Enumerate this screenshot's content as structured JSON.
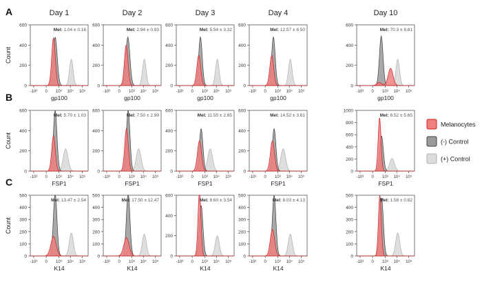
{
  "figure": {
    "days": [
      "Day 1",
      "Day 2",
      "Day 3",
      "Day 4",
      "Day 10"
    ],
    "colors": {
      "melanocytes_fill": "#f08080",
      "melanocytes_stroke": "#d02020",
      "neg_control_fill": "#9a9a9a",
      "neg_control_stroke": "#404040",
      "pos_control_fill": "#dcdcdc",
      "pos_control_stroke": "#b0b0b0"
    },
    "legend": [
      {
        "key": "mel",
        "label": "Melanocytes"
      },
      {
        "key": "neg",
        "label": "(-) Control"
      },
      {
        "key": "pos",
        "label": "(+) Control"
      }
    ],
    "tick_labels_x": [
      "-10³",
      "0",
      "10³",
      "10⁴",
      "10⁵"
    ],
    "panels": [
      {
        "letter": "A",
        "marker": "gp100",
        "ylabel": "Count",
        "ymax": [
          600,
          600,
          600,
          600,
          600
        ],
        "yticks": [
          [
            0,
            200,
            400,
            600
          ],
          [
            0,
            200,
            400,
            600
          ],
          [
            0,
            200,
            400,
            600
          ],
          [
            0,
            200,
            400,
            600
          ],
          [
            0,
            200,
            400,
            600
          ]
        ],
        "mel_stats": [
          "1.04 ± 0.16",
          "2.94 ± 0.93",
          "5.54 ± 3.32",
          "12.57 ± 8.50",
          "70.3 ± 8.81"
        ]
      },
      {
        "letter": "B",
        "marker": "FSP1",
        "ylabel": "Count",
        "ymax": [
          600,
          600,
          600,
          600,
          1000
        ],
        "yticks": [
          [
            0,
            200,
            400,
            600
          ],
          [
            0,
            200,
            400,
            600
          ],
          [
            0,
            200,
            400,
            600
          ],
          [
            0,
            200,
            400,
            600
          ],
          [
            0,
            200,
            400,
            600,
            800,
            1000
          ]
        ],
        "mel_stats": [
          "5.70 ± 1.03",
          "7.50 ± 2.99",
          "11.55 ± 2.65",
          "14.52 ± 3.61",
          "6.52 ± 5.65"
        ]
      },
      {
        "letter": "C",
        "marker": "K14",
        "ylabel": "Count",
        "ymax": [
          500,
          500,
          600,
          500,
          500
        ],
        "yticks": [
          [
            0,
            100,
            200,
            300,
            400,
            500
          ],
          [
            0,
            100,
            200,
            300,
            400,
            500
          ],
          [
            0,
            200,
            400,
            600
          ],
          [
            0,
            100,
            200,
            300,
            400,
            500
          ],
          [
            0,
            100,
            200,
            300,
            400,
            500
          ]
        ],
        "mel_stats": [
          "13.47 ± 2.54",
          "17.50 ± 12.47",
          "8.60 ± 3.54",
          "8.03 ± 4.13",
          "1.58 ± 0.82"
        ]
      }
    ],
    "mel_prefix": "Mel:"
  },
  "chart_data": {
    "type": "area",
    "title": "",
    "xscale": "biexponential",
    "ylabel": "Count",
    "xticks": [
      "-10³",
      "0",
      "10³",
      "10⁴",
      "10⁵"
    ],
    "series_names": [
      "Melanocytes",
      "(-) Control",
      "(+) Control"
    ],
    "histograms": [
      [
        {
          "mel": [
            [
              300,
              470,
              0.15
            ]
          ],
          "neg": [
            [
              450,
              480,
              0.17
            ]
          ],
          "pos": [
            [
              12000,
              260,
              0.15
            ]
          ]
        },
        {
          "mel": [
            [
              280,
              400,
              0.15
            ]
          ],
          "neg": [
            [
              420,
              480,
              0.17
            ]
          ],
          "pos": [
            [
              12000,
              260,
              0.15
            ]
          ]
        },
        {
          "mel": [
            [
              250,
              300,
              0.16
            ]
          ],
          "neg": [
            [
              380,
              480,
              0.15
            ]
          ],
          "pos": [
            [
              12000,
              260,
              0.15
            ]
          ]
        },
        {
          "mel": [
            [
              250,
              300,
              0.16
            ]
          ],
          "neg": [
            [
              380,
              480,
              0.15
            ]
          ],
          "pos": [
            [
              12000,
              260,
              0.15
            ]
          ]
        },
        {
          "mel": [
            [
              250,
              30,
              0.2
            ],
            [
              3000,
              170,
              0.2
            ]
          ],
          "neg": [
            [
              420,
              490,
              0.15
            ]
          ],
          "pos": [
            [
              12000,
              260,
              0.15
            ]
          ]
        }
      ],
      [
        {
          "mel": [
            [
              300,
              350,
              0.15
            ]
          ],
          "neg": [
            [
              450,
              600,
              0.15
            ]
          ],
          "pos": [
            [
              4000,
              220,
              0.2
            ]
          ]
        },
        {
          "mel": [
            [
              300,
              420,
              0.15
            ]
          ],
          "neg": [
            [
              450,
              600,
              0.15
            ]
          ],
          "pos": [
            [
              4000,
              220,
              0.2
            ]
          ]
        },
        {
          "mel": [
            [
              300,
              300,
              0.17
            ]
          ],
          "neg": [
            [
              450,
              420,
              0.15
            ]
          ],
          "pos": [
            [
              3000,
              220,
              0.2
            ]
          ]
        },
        {
          "mel": [
            [
              300,
              300,
              0.17
            ]
          ],
          "neg": [
            [
              450,
              420,
              0.15
            ]
          ],
          "pos": [
            [
              3000,
              220,
              0.2
            ]
          ]
        },
        {
          "mel": [
            [
              280,
              880,
              0.12
            ]
          ],
          "neg": [
            [
              450,
              580,
              0.15
            ]
          ],
          "pos": [
            [
              4000,
              210,
              0.2
            ]
          ]
        }
      ],
      [
        {
          "mel": [
            [
              300,
              160,
              0.22
            ]
          ],
          "neg": [
            [
              450,
              520,
              0.15
            ]
          ],
          "pos": [
            [
              12000,
              190,
              0.17
            ]
          ]
        },
        {
          "mel": [
            [
              300,
              150,
              0.22
            ]
          ],
          "neg": [
            [
              450,
              520,
              0.15
            ]
          ],
          "pos": [
            [
              12000,
              180,
              0.17
            ]
          ]
        },
        {
          "mel": [
            [
              300,
              650,
              0.12
            ]
          ],
          "neg": [
            [
              450,
              500,
              0.15
            ]
          ],
          "pos": [
            [
              12000,
              200,
              0.17
            ]
          ]
        },
        {
          "mel": [
            [
              300,
              220,
              0.18
            ]
          ],
          "neg": [
            [
              450,
              500,
              0.15
            ]
          ],
          "pos": [
            [
              12000,
              180,
              0.17
            ]
          ]
        },
        {
          "mel": [
            [
              300,
              500,
              0.12
            ]
          ],
          "neg": [
            [
              450,
              480,
              0.15
            ]
          ],
          "pos": [
            [
              12000,
              190,
              0.17
            ]
          ]
        }
      ]
    ],
    "histogram_note": ""
  }
}
